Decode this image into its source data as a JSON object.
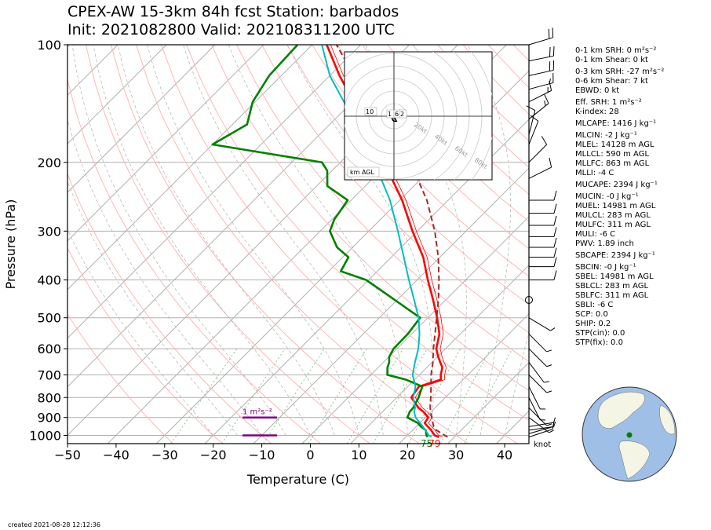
{
  "header": {
    "line1": "CPEX-AW 15-3km  84h fcst  Station: barbados",
    "line2": "Init: 2021082800  Valid: 202108311200 UTC"
  },
  "indices": [
    {
      "text": "0-1 km SRH: 0 m²s⁻²",
      "gap": true
    },
    {
      "text": "0-1 km Shear: 0 kt",
      "gap": false
    },
    {
      "text": "0-3 km SRH: -27 m²s⁻²",
      "gap": true
    },
    {
      "text": "0-6 km Shear: 7 kt",
      "gap": false
    },
    {
      "text": "EBWD: 0 kt",
      "gap": false
    },
    {
      "text": "Eff. SRH: 1 m²s⁻²",
      "gap": true
    },
    {
      "text": "K-index: 28",
      "gap": false
    },
    {
      "text": "MLCAPE: 1416 J kg⁻¹",
      "gap": true
    },
    {
      "text": "MLCIN: -2 J kg⁻¹",
      "gap": true
    },
    {
      "text": "MLEL: 14128 m AGL",
      "gap": false
    },
    {
      "text": "MLLCL: 590 m AGL",
      "gap": false
    },
    {
      "text": "MLLFC: 863 m AGL",
      "gap": false
    },
    {
      "text": "MLLI: -4 C",
      "gap": false
    },
    {
      "text": "MUCAPE: 2394 J kg⁻¹",
      "gap": true
    },
    {
      "text": "MUCIN: -0 J kg⁻¹",
      "gap": true
    },
    {
      "text": "MUEL: 14981 m AGL",
      "gap": false
    },
    {
      "text": "MULCL: 283 m AGL",
      "gap": false
    },
    {
      "text": "MULFC: 311 m AGL",
      "gap": false
    },
    {
      "text": "MULI: -6 C",
      "gap": false
    },
    {
      "text": "PWV: 1.89 inch",
      "gap": false
    },
    {
      "text": "SBCAPE: 2394 J kg⁻¹",
      "gap": true
    },
    {
      "text": "SBCIN: -0 J kg⁻¹",
      "gap": true
    },
    {
      "text": "SBEL: 14981 m AGL",
      "gap": false
    },
    {
      "text": "SBLCL: 283 m AGL",
      "gap": false
    },
    {
      "text": "SBLFC: 311 m AGL",
      "gap": false
    },
    {
      "text": "SBLI: -6 C",
      "gap": false
    },
    {
      "text": "SCP: 0.0",
      "gap": false
    },
    {
      "text": "SHIP: 0.2",
      "gap": false
    },
    {
      "text": "STP(cin): 0.0",
      "gap": false
    },
    {
      "text": "STP(fix): 0.0",
      "gap": false
    }
  ],
  "footer": {
    "created": "created 2021-08-28 12:12:36"
  },
  "colors": {
    "temperature": "#ff0000",
    "dewpoint": "#008000",
    "wetbulb": "#00bfbf",
    "parcel": "#a52a2a",
    "srh_bar": "#800080",
    "dry_adiabat": "#ffb6b6",
    "moist_adiabat": "#b0b0b0",
    "mixing_ratio": "#90c090",
    "globe_ocean": "#9fbfe6",
    "globe_land": "#f5f5e6"
  },
  "chart_data": {
    "type": "skew-t",
    "xlabel": "Temperature (C)",
    "ylabel": "Pressure (hPa)",
    "xlim": [
      -50,
      45
    ],
    "ylim": [
      1050,
      100
    ],
    "y_scale": "log",
    "x_ticks": [
      -50,
      -40,
      -30,
      -20,
      -10,
      0,
      10,
      20,
      30,
      40
    ],
    "y_ticks": [
      100,
      200,
      300,
      400,
      500,
      600,
      700,
      800,
      900,
      1000
    ],
    "grid": true,
    "surface_labels": {
      "dewpoint": "75",
      "temperature": "79"
    },
    "wind_unit_label": "knot",
    "srh_bar_label": "1 m²s⁻²",
    "series": [
      {
        "name": "temperature",
        "pressure": [
          1010,
          1000,
          970,
          950,
          930,
          900,
          870,
          850,
          800,
          750,
          720,
          700,
          670,
          650,
          630,
          600,
          550,
          500,
          450,
          400,
          350,
          300,
          250,
          200,
          150,
          120,
          100
        ],
        "values": [
          26.8,
          25.6,
          23.8,
          22.4,
          21.0,
          20.6,
          18.4,
          16.6,
          13.0,
          12.3,
          15.4,
          14.4,
          13.2,
          11.7,
          10.2,
          8.1,
          5.7,
          1.9,
          -2.6,
          -7.8,
          -13.4,
          -21.0,
          -29.5,
          -41.0,
          -56.0,
          -68.0,
          -77.0
        ]
      },
      {
        "name": "dewpoint",
        "pressure": [
          1010,
          1000,
          970,
          950,
          930,
          900,
          870,
          850,
          800,
          750,
          720,
          700,
          670,
          650,
          630,
          600,
          550,
          500,
          450,
          400,
          380,
          350,
          330,
          300,
          280,
          250,
          230,
          210,
          200,
          180,
          160,
          140,
          120,
          100
        ],
        "values": [
          24.5,
          23.9,
          22.7,
          21.0,
          19.6,
          16.3,
          15.6,
          15.5,
          14.5,
          13.0,
          8.2,
          3.4,
          1.9,
          1.2,
          0.1,
          -0.7,
          -0.8,
          -1.6,
          -10.5,
          -20.5,
          -27.5,
          -28.8,
          -33.2,
          -38.0,
          -39.5,
          -40.7,
          -47.8,
          -51.0,
          -53.8,
          -80.0,
          -77.0,
          -80.5,
          -82.5,
          -83.0
        ]
      },
      {
        "name": "wetbulb",
        "pressure": [
          1010,
          1000,
          950,
          900,
          870,
          850,
          800,
          750,
          700,
          650,
          600,
          550,
          500,
          450,
          400,
          350,
          300,
          250,
          200,
          150,
          120,
          100
        ],
        "values": [
          25.3,
          24.4,
          21.4,
          18.0,
          16.5,
          15.9,
          13.4,
          11.6,
          8.6,
          6.5,
          4.4,
          1.6,
          -1.9,
          -6.5,
          -11.7,
          -17.4,
          -24.0,
          -32.0,
          -43.0,
          -58.0,
          -70.0,
          -78.0
        ]
      },
      {
        "name": "parcel",
        "pressure": [
          1010,
          970,
          950,
          900,
          850,
          800,
          750,
          700,
          650,
          600,
          550,
          500,
          450,
          400,
          350,
          300,
          250,
          200,
          150,
          120,
          100
        ],
        "values": [
          28.6,
          24.9,
          23.6,
          21.3,
          19.0,
          17.0,
          14.8,
          12.4,
          10.2,
          7.5,
          4.8,
          1.8,
          -1.5,
          -5.5,
          -10.3,
          -16.4,
          -24.4,
          -35.6,
          -52.0,
          -65.0,
          -75.0
        ]
      }
    ],
    "wind_barbs": [
      {
        "p": 1010,
        "u": -6,
        "v": -2
      },
      {
        "p": 990,
        "u": -7,
        "v": -2
      },
      {
        "p": 970,
        "u": -7,
        "v": -1
      },
      {
        "p": 950,
        "u": -6,
        "v": -1
      },
      {
        "p": 900,
        "u": -4,
        "v": 3
      },
      {
        "p": 850,
        "u": -3,
        "v": 3
      },
      {
        "p": 800,
        "u": -2,
        "v": 4
      },
      {
        "p": 750,
        "u": -2,
        "v": 4
      },
      {
        "p": 700,
        "u": -4,
        "v": 4
      },
      {
        "p": 650,
        "u": -3,
        "v": 4
      },
      {
        "p": 600,
        "u": -4,
        "v": 4
      },
      {
        "p": 550,
        "u": -4,
        "v": 4
      },
      {
        "p": 500,
        "u": -5,
        "v": 3
      },
      {
        "p": 450,
        "u": 0,
        "v": 0
      },
      {
        "p": 400,
        "u": -8,
        "v": 0
      },
      {
        "p": 370,
        "u": -8,
        "v": 0
      },
      {
        "p": 350,
        "u": -10,
        "v": 0
      },
      {
        "p": 330,
        "u": -10,
        "v": 0
      },
      {
        "p": 310,
        "u": -10,
        "v": 0
      },
      {
        "p": 290,
        "u": -10,
        "v": 0
      },
      {
        "p": 270,
        "u": -10,
        "v": 0
      },
      {
        "p": 250,
        "u": -10,
        "v": 0
      },
      {
        "p": 220,
        "u": -8,
        "v": -4
      },
      {
        "p": 200,
        "u": -6,
        "v": -6
      },
      {
        "p": 180,
        "u": -4,
        "v": -10
      },
      {
        "p": 170,
        "u": -3,
        "v": -12
      },
      {
        "p": 155,
        "u": -10,
        "v": -8
      },
      {
        "p": 140,
        "u": -12,
        "v": -6
      },
      {
        "p": 130,
        "u": -15,
        "v": -4
      },
      {
        "p": 120,
        "u": -18,
        "v": -4
      },
      {
        "p": 110,
        "u": -20,
        "v": -4
      },
      {
        "p": 100,
        "u": -20,
        "v": -6
      }
    ],
    "hodograph": {
      "ring_labels": [
        "20kt",
        "40kt",
        "60kt",
        "80kt"
      ],
      "legend": "km AGL",
      "height_labels": [
        "10",
        "1",
        "6",
        "2"
      ],
      "points": [
        [
          -3,
          1
        ],
        [
          -1,
          0
        ],
        [
          1,
          -2
        ],
        [
          2,
          -4
        ],
        [
          0,
          -4
        ],
        [
          -1,
          -3
        ],
        [
          -2,
          0
        ],
        [
          -4,
          1
        ]
      ]
    },
    "srh_bars": [
      {
        "p": 900
      },
      {
        "p": 1000
      }
    ]
  }
}
